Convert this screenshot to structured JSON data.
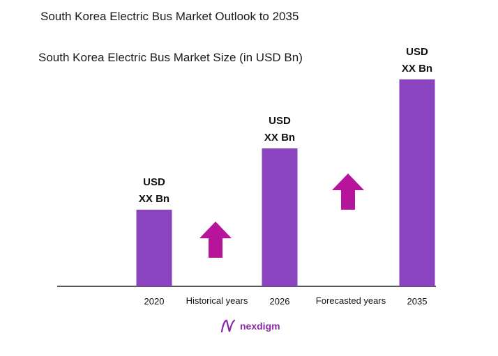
{
  "header": {
    "title": "South Korea Electric Bus Market Outlook to 2035",
    "subtitle": "South Korea Electric Bus Market Size (in USD Bn)"
  },
  "chart_data": {
    "type": "bar",
    "categories": [
      "2020",
      "2026",
      "2035"
    ],
    "values": [
      1,
      1.8,
      2.7
    ],
    "value_labels": [
      [
        "USD",
        "XX Bn"
      ],
      [
        "USD",
        "XX Bn"
      ],
      [
        "USD",
        "XX Bn"
      ]
    ],
    "period_labels": [
      "Historical years",
      "Forecasted years"
    ],
    "bar_color": "#8a44bf",
    "arrow_color": "#b5149b",
    "grid": false,
    "legend": "none"
  },
  "brand": {
    "name": "nexdigm",
    "color": "#8a2aa0"
  }
}
